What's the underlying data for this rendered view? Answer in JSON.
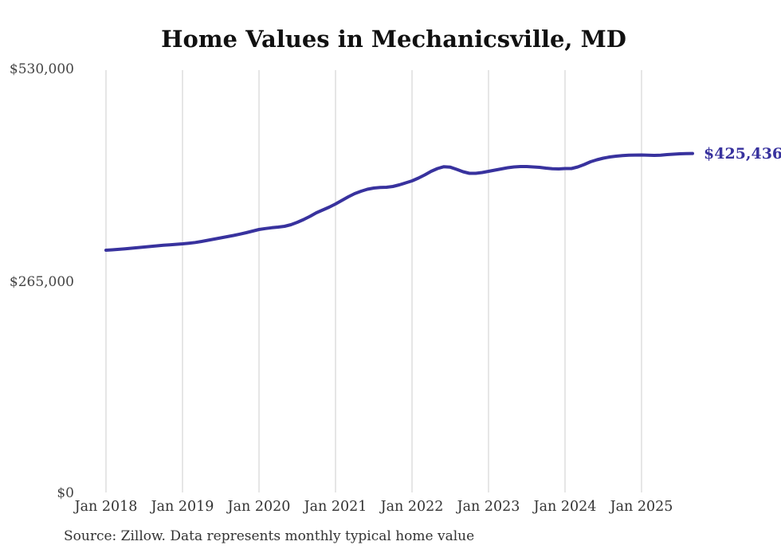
{
  "header": {
    "title": "Home Values in Mechanicsville, MD"
  },
  "footer": {
    "source_note": "Source: Zillow. Data represents monthly typical home value"
  },
  "chart_data": {
    "type": "line",
    "title": "Home Values in Mechanicsville, MD",
    "series_name": "Monthly typical home value",
    "ylabel": "",
    "xlabel": "",
    "ylim": [
      0,
      530000
    ],
    "grid": "vertical-only",
    "y_ticks": [
      {
        "label": "$0",
        "value": 0
      },
      {
        "label": "$265,000",
        "value": 265000
      },
      {
        "label": "$530,000",
        "value": 530000
      }
    ],
    "x_ticks": [
      "Jan 2018",
      "Jan 2019",
      "Jan 2020",
      "Jan 2021",
      "Jan 2022",
      "Jan 2023",
      "Jan 2024",
      "Jan 2025"
    ],
    "end_label": "$425,436",
    "final_value": 425436,
    "colors": {
      "line": "#38329e",
      "grid": "#cccccc",
      "axis_text": "#444444",
      "title_text": "#111111",
      "source_text": "#333333"
    },
    "dates": [
      "2018-01",
      "2018-02",
      "2018-03",
      "2018-04",
      "2018-05",
      "2018-06",
      "2018-07",
      "2018-08",
      "2018-09",
      "2018-10",
      "2018-11",
      "2018-12",
      "2019-01",
      "2019-02",
      "2019-03",
      "2019-04",
      "2019-05",
      "2019-06",
      "2019-07",
      "2019-08",
      "2019-09",
      "2019-10",
      "2019-11",
      "2019-12",
      "2020-01",
      "2020-02",
      "2020-03",
      "2020-04",
      "2020-05",
      "2020-06",
      "2020-07",
      "2020-08",
      "2020-09",
      "2020-10",
      "2020-11",
      "2020-12",
      "2021-01",
      "2021-02",
      "2021-03",
      "2021-04",
      "2021-05",
      "2021-06",
      "2021-07",
      "2021-08",
      "2021-09",
      "2021-10",
      "2021-11",
      "2021-12",
      "2022-01",
      "2022-02",
      "2022-03",
      "2022-04",
      "2022-05",
      "2022-06",
      "2022-07",
      "2022-08",
      "2022-09",
      "2022-10",
      "2022-11",
      "2022-12",
      "2023-01",
      "2023-02",
      "2023-03",
      "2023-04",
      "2023-05",
      "2023-06",
      "2023-07",
      "2023-08",
      "2023-09",
      "2023-10",
      "2023-11",
      "2023-12",
      "2024-01",
      "2024-02",
      "2024-03",
      "2024-04",
      "2024-05",
      "2024-06",
      "2024-07",
      "2024-08",
      "2024-09",
      "2024-10",
      "2024-11",
      "2024-12",
      "2025-01",
      "2025-02",
      "2025-03",
      "2025-04",
      "2025-05",
      "2025-06",
      "2025-07",
      "2025-08",
      "2025-09"
    ],
    "values": [
      304000,
      304500,
      305100,
      305800,
      306500,
      307300,
      308000,
      308800,
      309500,
      310200,
      310800,
      311400,
      312000,
      312800,
      313700,
      315000,
      316500,
      318000,
      319500,
      321000,
      322500,
      324200,
      326000,
      328000,
      330000,
      331200,
      332200,
      333000,
      334000,
      336000,
      339000,
      342500,
      346500,
      351000,
      354500,
      358000,
      362000,
      366500,
      371000,
      375000,
      378000,
      380500,
      382000,
      382800,
      383000,
      384000,
      386000,
      388500,
      391000,
      394500,
      398500,
      403000,
      406500,
      408800,
      408200,
      405500,
      402500,
      400500,
      400500,
      401500,
      403000,
      404500,
      406000,
      407500,
      408500,
      409000,
      409000,
      408500,
      408000,
      407000,
      406200,
      406000,
      406500,
      406500,
      408500,
      411500,
      415000,
      417500,
      419500,
      421000,
      422000,
      422800,
      423200,
      423400,
      423500,
      423200,
      423000,
      423300,
      424000,
      424500,
      425000,
      425200,
      425436
    ]
  }
}
